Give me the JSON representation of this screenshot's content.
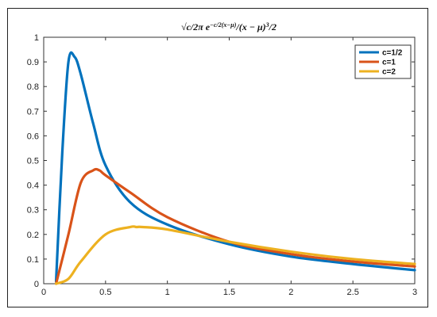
{
  "chart_data": {
    "type": "line",
    "title": "√c/2π e^{−c/2(x−μ)}/(x − μ)^{3/2}",
    "title_parts": {
      "sqrt_arg": "c/2π",
      "base": "e",
      "exponent": "−c/2(x−μ)",
      "denominator": "/(x − μ)",
      "power_num": "3",
      "power_rest": "/2"
    },
    "xlabel": "",
    "ylabel": "",
    "xlim": [
      0,
      3
    ],
    "ylim": [
      0,
      1
    ],
    "x_ticks": [
      "0",
      "0.5",
      "1",
      "1.5",
      "2",
      "2.5",
      "3"
    ],
    "y_ticks": [
      "0",
      "0.1",
      "0.2",
      "0.3",
      "0.4",
      "0.5",
      "0.6",
      "0.7",
      "0.8",
      "0.9",
      "1"
    ],
    "grid": false,
    "legend_position": "top-right",
    "series": [
      {
        "name": "c=1/2",
        "color": "#0072BD",
        "x": [
          0.1,
          0.15,
          0.2,
          0.25,
          0.3,
          0.4,
          0.5,
          0.7,
          1.0,
          1.5,
          2.0,
          2.5,
          3.0
        ],
        "y": [
          0.01,
          0.53,
          0.9,
          0.92,
          0.85,
          0.65,
          0.48,
          0.33,
          0.24,
          0.16,
          0.11,
          0.08,
          0.055
        ]
      },
      {
        "name": "c=1",
        "color": "#D95319",
        "x": [
          0.1,
          0.2,
          0.3,
          0.4,
          0.45,
          0.5,
          0.7,
          1.0,
          1.5,
          2.0,
          2.5,
          3.0
        ],
        "y": [
          0.0,
          0.2,
          0.41,
          0.46,
          0.46,
          0.44,
          0.37,
          0.27,
          0.17,
          0.12,
          0.09,
          0.07
        ]
      },
      {
        "name": "c=2",
        "color": "#EDB120",
        "x": [
          0.1,
          0.2,
          0.3,
          0.5,
          0.7,
          0.75,
          0.8,
          1.0,
          1.5,
          2.0,
          2.5,
          3.0
        ],
        "y": [
          0.0,
          0.02,
          0.09,
          0.2,
          0.23,
          0.23,
          0.23,
          0.22,
          0.17,
          0.13,
          0.1,
          0.08
        ]
      }
    ]
  }
}
